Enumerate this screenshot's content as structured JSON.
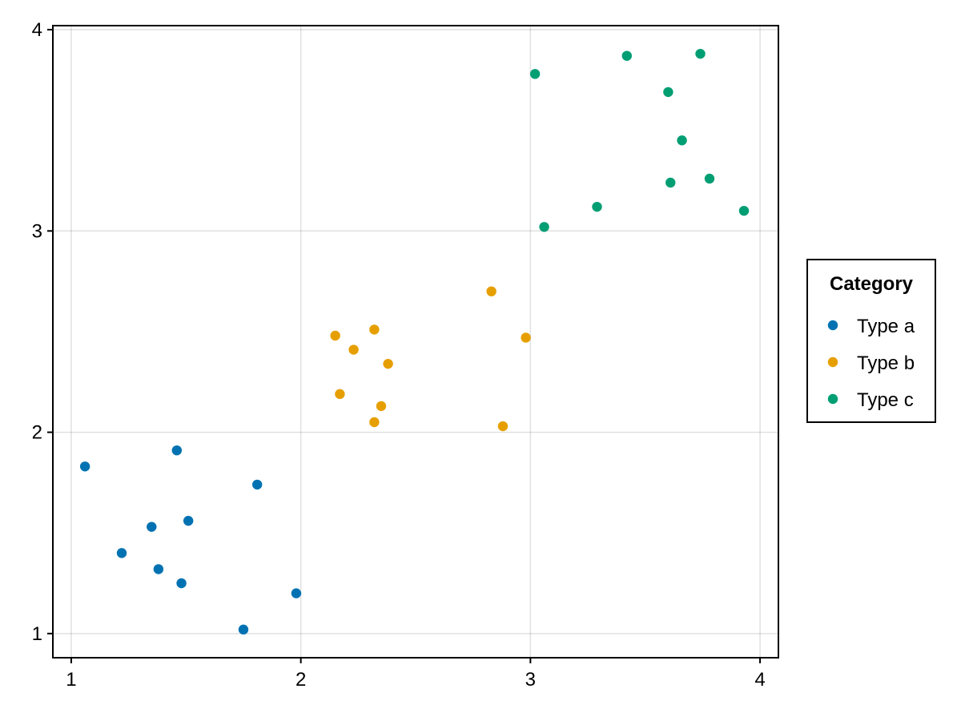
{
  "chart_data": {
    "type": "scatter",
    "title": "",
    "xlabel": "",
    "ylabel": "",
    "xlim": [
      0.92,
      4.08
    ],
    "ylim": [
      0.88,
      4.02
    ],
    "xticks": [
      "1",
      "2",
      "3",
      "4"
    ],
    "yticks": [
      "1",
      "2",
      "3",
      "4"
    ],
    "grid": true,
    "legend": {
      "title": "Category",
      "placement": "right"
    },
    "series": [
      {
        "name": "Type a",
        "color": "#0072B2",
        "points": [
          [
            1.06,
            1.83
          ],
          [
            1.46,
            1.91
          ],
          [
            1.81,
            1.74
          ],
          [
            1.35,
            1.53
          ],
          [
            1.51,
            1.56
          ],
          [
            1.22,
            1.4
          ],
          [
            1.38,
            1.32
          ],
          [
            1.48,
            1.25
          ],
          [
            1.98,
            1.2
          ],
          [
            1.75,
            1.02
          ]
        ]
      },
      {
        "name": "Type b",
        "color": "#E69F00",
        "points": [
          [
            2.15,
            2.48
          ],
          [
            2.32,
            2.51
          ],
          [
            2.23,
            2.41
          ],
          [
            2.38,
            2.34
          ],
          [
            2.83,
            2.7
          ],
          [
            2.98,
            2.47
          ],
          [
            2.17,
            2.19
          ],
          [
            2.35,
            2.13
          ],
          [
            2.32,
            2.05
          ],
          [
            2.88,
            2.03
          ]
        ]
      },
      {
        "name": "Type c",
        "color": "#009E73",
        "points": [
          [
            3.02,
            3.78
          ],
          [
            3.42,
            3.87
          ],
          [
            3.74,
            3.88
          ],
          [
            3.6,
            3.69
          ],
          [
            3.66,
            3.45
          ],
          [
            3.61,
            3.24
          ],
          [
            3.78,
            3.26
          ],
          [
            3.29,
            3.12
          ],
          [
            3.06,
            3.02
          ],
          [
            3.93,
            3.1
          ]
        ]
      }
    ]
  }
}
